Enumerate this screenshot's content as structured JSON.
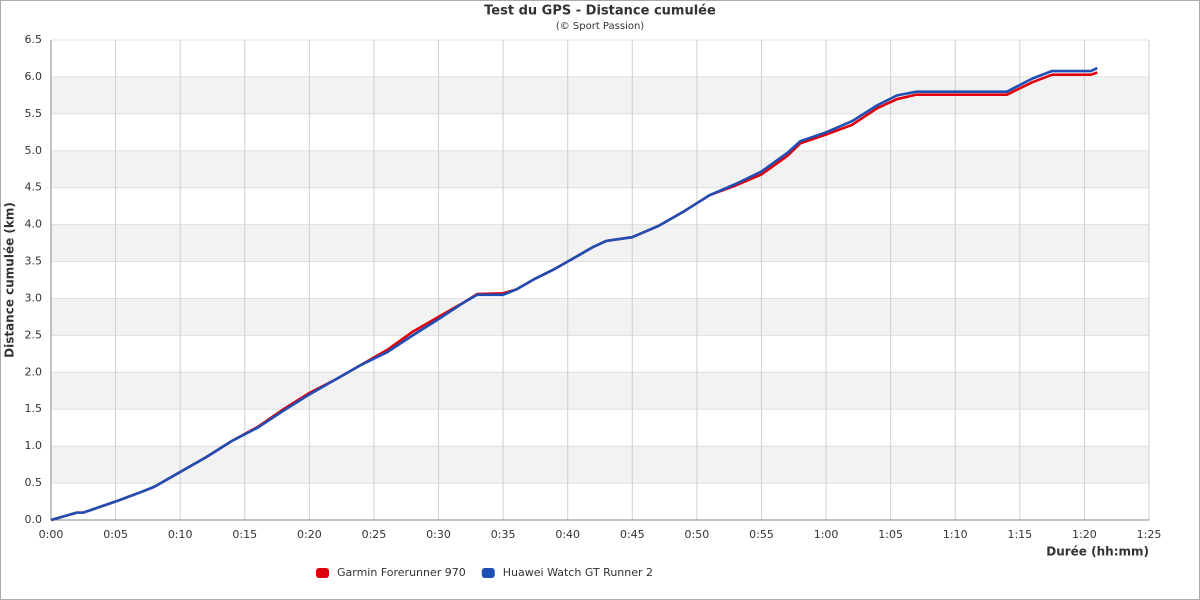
{
  "chart_data": {
    "type": "line",
    "title": "Test du GPS - Distance cumulée",
    "subtitle": "(© Sport Passion)",
    "x_label": "Durée (hh:mm)",
    "y_label": "Distance cumulée (km)",
    "x": [
      0,
      2,
      2.5,
      5,
      7,
      8,
      10,
      12,
      14,
      16,
      18,
      20,
      22,
      24,
      26,
      28,
      30,
      32,
      33,
      35,
      36,
      37.5,
      39,
      40.5,
      42,
      43,
      45,
      47,
      49,
      51,
      53,
      55,
      57,
      58,
      60,
      62,
      64,
      65.5,
      67,
      74,
      76,
      77.5,
      80.5,
      81
    ],
    "series": [
      {
        "name": "Garmin Forerunner 970",
        "color": "#e0000b",
        "values": [
          0,
          0.1,
          0.1,
          0.25,
          0.38,
          0.45,
          0.65,
          0.85,
          1.07,
          1.26,
          1.5,
          1.72,
          1.9,
          2.1,
          2.3,
          2.55,
          2.75,
          2.95,
          3.06,
          3.07,
          3.12,
          3.27,
          3.4,
          3.55,
          3.7,
          3.78,
          3.83,
          3.98,
          4.18,
          4.4,
          4.53,
          4.68,
          4.93,
          5.1,
          5.22,
          5.35,
          5.58,
          5.7,
          5.76,
          5.76,
          5.93,
          6.03,
          6.03,
          6.06
        ]
      },
      {
        "name": "Huawei Watch GT Runner 2",
        "color": "#1f4fb4",
        "values": [
          0,
          0.1,
          0.1,
          0.25,
          0.38,
          0.45,
          0.65,
          0.85,
          1.07,
          1.25,
          1.48,
          1.7,
          1.9,
          2.1,
          2.27,
          2.5,
          2.72,
          2.95,
          3.05,
          3.05,
          3.12,
          3.27,
          3.4,
          3.55,
          3.7,
          3.78,
          3.83,
          3.98,
          4.18,
          4.4,
          4.55,
          4.72,
          4.97,
          5.13,
          5.25,
          5.4,
          5.62,
          5.75,
          5.8,
          5.8,
          5.98,
          6.08,
          6.08,
          6.12
        ]
      }
    ],
    "xlim": [
      0,
      85
    ],
    "xticks": [
      {
        "value": 0,
        "label": "0:00"
      },
      {
        "value": 5,
        "label": "0:05"
      },
      {
        "value": 10,
        "label": "0:10"
      },
      {
        "value": 15,
        "label": "0:15"
      },
      {
        "value": 20,
        "label": "0:20"
      },
      {
        "value": 25,
        "label": "0:25"
      },
      {
        "value": 30,
        "label": "0:30"
      },
      {
        "value": 35,
        "label": "0:35"
      },
      {
        "value": 40,
        "label": "0:40"
      },
      {
        "value": 45,
        "label": "0:45"
      },
      {
        "value": 50,
        "label": "0:50"
      },
      {
        "value": 55,
        "label": "0:55"
      },
      {
        "value": 60,
        "label": "1:00"
      },
      {
        "value": 65,
        "label": "1:05"
      },
      {
        "value": 70,
        "label": "1:10"
      },
      {
        "value": 75,
        "label": "1:15"
      },
      {
        "value": 80,
        "label": "1:20"
      },
      {
        "value": 85,
        "label": "1:25"
      }
    ],
    "ylim": [
      0,
      6.5
    ],
    "yticks": [
      {
        "value": 0,
        "label": "0.0"
      },
      0.5,
      {
        "value": 1,
        "label": "1.0"
      },
      1.5,
      {
        "value": 2,
        "label": "2.0"
      },
      2.5,
      {
        "value": 3,
        "label": "3.0"
      },
      3.5,
      {
        "value": 4,
        "label": "4.0"
      },
      4.5,
      {
        "value": 5,
        "label": "5.0"
      },
      5.5,
      {
        "value": 6,
        "label": "6.0"
      },
      6.5
    ],
    "grid": true,
    "legend": "bottom"
  }
}
